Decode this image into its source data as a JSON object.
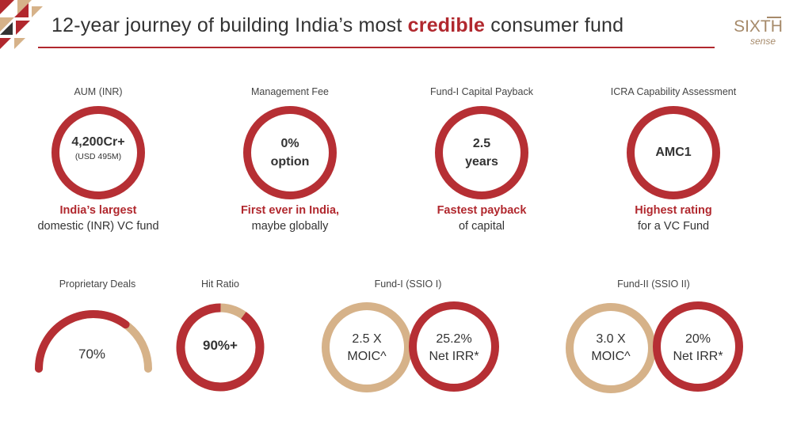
{
  "header": {
    "title_pre": "12-year journey of building India’s most ",
    "title_highlight": "credible",
    "title_post": " consumer fund",
    "logo_top": "SIXTH",
    "logo_bottom": "sense"
  },
  "colors": {
    "accent": "#b1282e",
    "ring_red": "#b62f34",
    "ring_tan": "#d6b289"
  },
  "metrics_top": [
    {
      "label": "AUM (INR)",
      "value": "4,200Cr+",
      "sub": "(USD 495M)",
      "highlight": "India’s largest",
      "caption": "domestic (INR) VC fund"
    },
    {
      "label": "Management Fee",
      "value_line1": "0%",
      "value_line2": "option",
      "highlight": "First ever in India,",
      "caption": "maybe globally"
    },
    {
      "label": "Fund-I Capital Payback",
      "value_line1": "2.5",
      "value_line2": "years",
      "highlight": "Fastest payback",
      "caption": "of capital"
    },
    {
      "label": "ICRA Capability Assessment",
      "value": "AMC1",
      "highlight": "Highest rating",
      "caption": "for a VC Fund"
    }
  ],
  "metrics_bottom": {
    "proprietary": {
      "label": "Proprietary Deals",
      "value": "70%",
      "fraction": 0.7
    },
    "hit_ratio": {
      "label": "Hit Ratio",
      "value": "90%+",
      "fraction": 0.9
    },
    "fund1": {
      "label": "Fund-I (SSIO I)",
      "moic_value": "2.5 X",
      "moic_label": "MOIC^",
      "irr_value": "25.2%",
      "irr_label": "Net IRR*"
    },
    "fund2": {
      "label": "Fund-II (SSIO II)",
      "moic_value": "3.0 X",
      "moic_label": "MOIC^",
      "irr_value": "20%",
      "irr_label": "Net IRR*"
    }
  }
}
